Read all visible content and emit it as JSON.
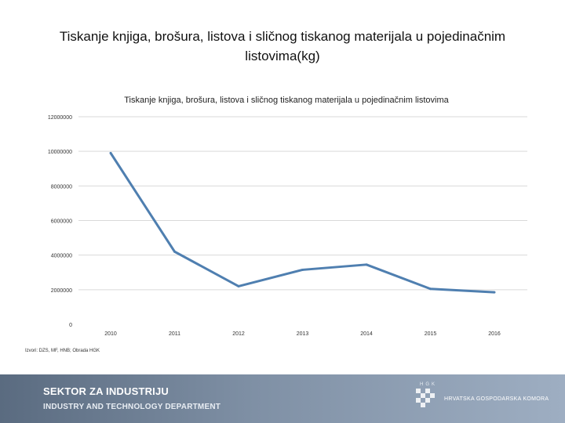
{
  "slide": {
    "title": "Tiskanje knjiga, brošura, listova i sličnog tiskanog materijala u pojedinačnim listovima(kg)",
    "source_note": "Izvori: DZS, MF, HNB; Obrada HGK"
  },
  "footer": {
    "line1": "SEKTOR ZA INDUSTRIJU",
    "line2": "INDUSTRY AND TECHNOLOGY DEPARTMENT",
    "logo_letters": "HGK",
    "logo_name": "HRVATSKA GOSPODARSKA KOMORA"
  },
  "chart_data": {
    "type": "line",
    "title": "Tiskanje knjiga, brošura, listova i sličnog tiskanog materijala u pojedinačnim listovima",
    "xlabel": "",
    "ylabel": "",
    "categories": [
      "2010",
      "2011",
      "2012",
      "2013",
      "2014",
      "2015",
      "2016"
    ],
    "series": [
      {
        "values": [
          9900000,
          4200000,
          2200000,
          3150000,
          3450000,
          2050000,
          1850000
        ]
      }
    ],
    "yticks": [
      "0",
      "2000000",
      "4000000",
      "6000000",
      "8000000",
      "10000000",
      "12000000"
    ],
    "ylim": [
      0,
      12000000
    ],
    "grid": true,
    "legend": "none",
    "line_color": "#4f7fb0",
    "grid_color": "#d9d9d9"
  }
}
